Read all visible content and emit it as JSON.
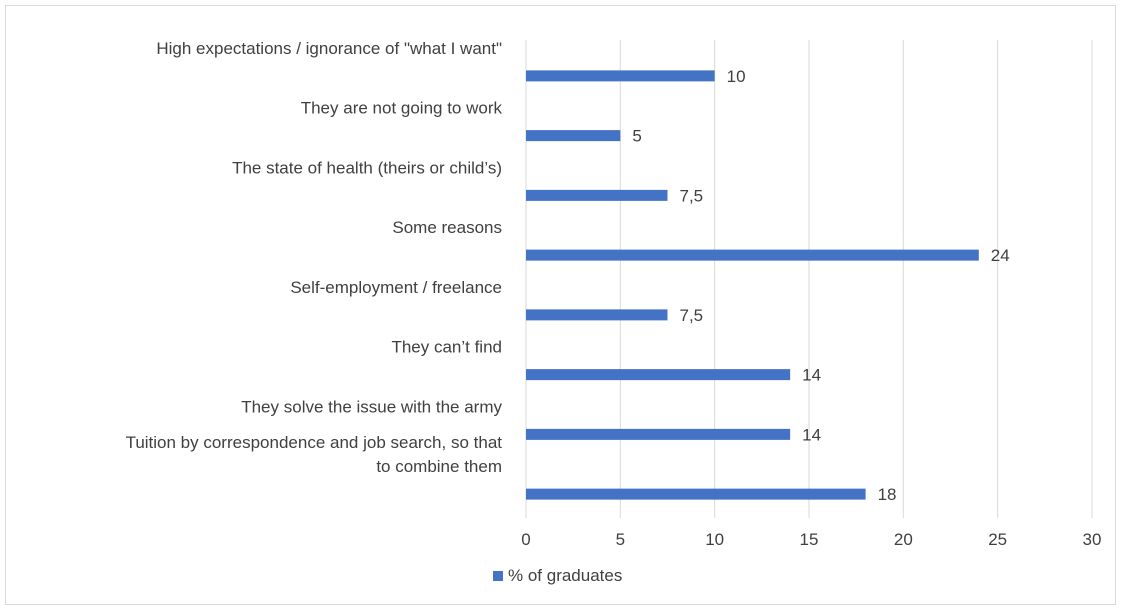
{
  "chart_data": {
    "type": "bar",
    "orientation": "horizontal",
    "title": "",
    "xlabel": "",
    "ylabel": "",
    "categories": [
      "High expectations / ignorance of \"what I want\"",
      "They are not going to work",
      "The state of health (theirs or child’s)",
      "Some reasons",
      "Self-employment / freelance",
      "They can’t find",
      "They solve the issue with the army",
      "Tuition by correspondence and job search, so that to combine them"
    ],
    "category_lines": [
      [
        "High expectations / ignorance of \"what I want\""
      ],
      [
        "They are not going to work"
      ],
      [
        "The state of health (theirs or child’s)"
      ],
      [
        "Some reasons"
      ],
      [
        "Self-employment / freelance"
      ],
      [
        "They can’t find"
      ],
      [
        "They solve the issue with the army"
      ],
      [
        "Tuition by correspondence and job search, so that",
        "to combine them"
      ]
    ],
    "series": [
      {
        "name": "% of graduates",
        "values": [
          10,
          5,
          7.5,
          24,
          7.5,
          14,
          14,
          18
        ],
        "labels": [
          "10",
          "5",
          "7,5",
          "24",
          "7,5",
          "14",
          "14",
          "18"
        ]
      }
    ],
    "xlim": [
      0,
      30
    ],
    "xticks": [
      0,
      5,
      10,
      15,
      20,
      25,
      30
    ],
    "grid": "vertical",
    "legend": "bottom-left",
    "colors": {
      "bar": "#4472c4",
      "grid": "#d9d9d9",
      "text": "#404040",
      "border": "#d9d9d9"
    }
  }
}
